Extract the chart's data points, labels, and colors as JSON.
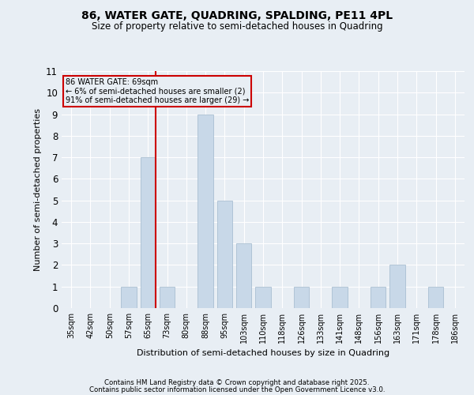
{
  "title1": "86, WATER GATE, QUADRING, SPALDING, PE11 4PL",
  "title2": "Size of property relative to semi-detached houses in Quadring",
  "xlabel": "Distribution of semi-detached houses by size in Quadring",
  "ylabel": "Number of semi-detached properties",
  "categories": [
    "35sqm",
    "42sqm",
    "50sqm",
    "57sqm",
    "65sqm",
    "73sqm",
    "80sqm",
    "88sqm",
    "95sqm",
    "103sqm",
    "110sqm",
    "118sqm",
    "126sqm",
    "133sqm",
    "141sqm",
    "148sqm",
    "156sqm",
    "163sqm",
    "171sqm",
    "178sqm",
    "186sqm"
  ],
  "values": [
    0,
    0,
    0,
    1,
    7,
    1,
    0,
    9,
    5,
    3,
    1,
    0,
    1,
    0,
    1,
    0,
    1,
    2,
    0,
    1,
    0
  ],
  "bar_color": "#c8d8e8",
  "bar_edgecolor": "#a0b8cc",
  "vline_index": 4,
  "vline_color": "#cc0000",
  "annotation_title": "86 WATER GATE: 69sqm",
  "annotation_line1": "← 6% of semi-detached houses are smaller (2)",
  "annotation_line2": "91% of semi-detached houses are larger (29) →",
  "annotation_box_color": "#cc0000",
  "ylim": [
    0,
    11
  ],
  "yticks": [
    0,
    1,
    2,
    3,
    4,
    5,
    6,
    7,
    8,
    9,
    10,
    11
  ],
  "background_color": "#e8eef4",
  "grid_color": "#ffffff",
  "footer1": "Contains HM Land Registry data © Crown copyright and database right 2025.",
  "footer2": "Contains public sector information licensed under the Open Government Licence v3.0."
}
